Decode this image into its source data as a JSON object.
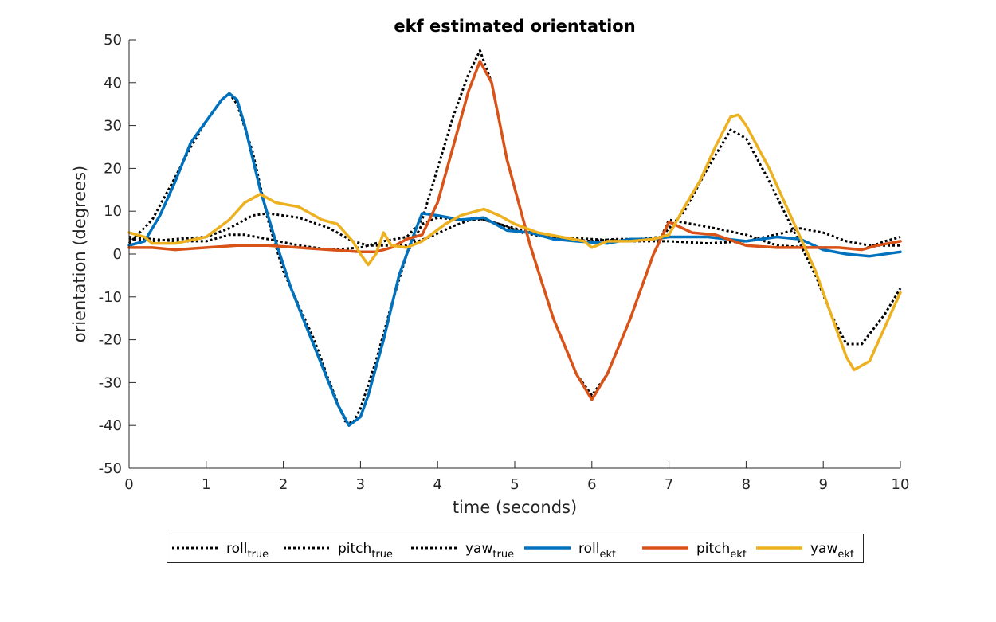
{
  "chart_data": {
    "type": "line",
    "title": "ekf estimated orientation",
    "xlabel": "time (seconds)",
    "ylabel": "orientation (degrees)",
    "xlim": [
      0,
      10
    ],
    "ylim": [
      -50,
      50
    ],
    "xticks": [
      0,
      1,
      2,
      3,
      4,
      5,
      6,
      7,
      8,
      9,
      10
    ],
    "yticks": [
      -50,
      -40,
      -30,
      -20,
      -10,
      0,
      10,
      20,
      30,
      40,
      50
    ],
    "grid": false,
    "legend_placement": "bottom-outside",
    "series": [
      {
        "name": "roll",
        "sub": "true",
        "color": "#000000",
        "style": "dotted",
        "points": [
          [
            0,
            2.5
          ],
          [
            0.3,
            8
          ],
          [
            0.6,
            18
          ],
          [
            0.8,
            25
          ],
          [
            1.0,
            31
          ],
          [
            1.2,
            36
          ],
          [
            1.3,
            37.5
          ],
          [
            1.4,
            35
          ],
          [
            1.6,
            24
          ],
          [
            1.8,
            8
          ],
          [
            2.0,
            -4
          ],
          [
            2.2,
            -12
          ],
          [
            2.4,
            -20
          ],
          [
            2.6,
            -30
          ],
          [
            2.8,
            -39
          ],
          [
            2.9,
            -39.5
          ],
          [
            3.0,
            -36
          ],
          [
            3.2,
            -25
          ],
          [
            3.4,
            -12
          ],
          [
            3.6,
            0
          ],
          [
            3.8,
            7
          ],
          [
            4.0,
            8.5
          ],
          [
            4.3,
            8
          ],
          [
            4.6,
            8
          ],
          [
            5.0,
            6
          ],
          [
            5.5,
            4
          ],
          [
            6.0,
            3.5
          ],
          [
            6.5,
            3
          ],
          [
            7.0,
            3
          ],
          [
            7.5,
            2.5
          ],
          [
            8.0,
            3
          ],
          [
            8.5,
            5
          ],
          [
            8.7,
            6
          ],
          [
            9.0,
            5
          ],
          [
            9.3,
            3
          ],
          [
            9.6,
            2
          ],
          [
            10.0,
            2
          ]
        ]
      },
      {
        "name": "pitch",
        "sub": "true",
        "color": "#000000",
        "style": "dotted",
        "points": [
          [
            0,
            4
          ],
          [
            0.3,
            3.5
          ],
          [
            0.6,
            3
          ],
          [
            1.0,
            3
          ],
          [
            1.3,
            4.5
          ],
          [
            1.5,
            4.5
          ],
          [
            1.8,
            3.5
          ],
          [
            2.2,
            2
          ],
          [
            2.6,
            1
          ],
          [
            3.0,
            1.5
          ],
          [
            3.3,
            3
          ],
          [
            3.6,
            4
          ],
          [
            3.8,
            8
          ],
          [
            4.0,
            20
          ],
          [
            4.2,
            32
          ],
          [
            4.4,
            42
          ],
          [
            4.55,
            47.5
          ],
          [
            4.7,
            40
          ],
          [
            4.9,
            22
          ],
          [
            5.2,
            2
          ],
          [
            5.5,
            -15
          ],
          [
            5.8,
            -28
          ],
          [
            6.0,
            -33
          ],
          [
            6.2,
            -28
          ],
          [
            6.5,
            -15
          ],
          [
            6.8,
            0
          ],
          [
            7.0,
            8
          ],
          [
            7.3,
            7
          ],
          [
            7.6,
            6
          ],
          [
            8.0,
            4.5
          ],
          [
            8.4,
            2
          ],
          [
            8.8,
            1.5
          ],
          [
            9.2,
            1.5
          ],
          [
            9.5,
            1
          ],
          [
            9.8,
            3
          ],
          [
            10.0,
            4
          ]
        ]
      },
      {
        "name": "yaw",
        "sub": "true",
        "color": "#000000",
        "style": "dotted",
        "points": [
          [
            0,
            3.5
          ],
          [
            0.3,
            3
          ],
          [
            0.6,
            3.5
          ],
          [
            1.0,
            4
          ],
          [
            1.3,
            6
          ],
          [
            1.6,
            9
          ],
          [
            1.8,
            9.5
          ],
          [
            2.2,
            8.5
          ],
          [
            2.6,
            6
          ],
          [
            2.9,
            3
          ],
          [
            3.1,
            2
          ],
          [
            3.3,
            2
          ],
          [
            3.6,
            2
          ],
          [
            3.9,
            4
          ],
          [
            4.2,
            6.5
          ],
          [
            4.5,
            8.5
          ],
          [
            4.8,
            7
          ],
          [
            5.1,
            5
          ],
          [
            5.4,
            4
          ],
          [
            5.7,
            3.5
          ],
          [
            6.0,
            3
          ],
          [
            6.3,
            3.5
          ],
          [
            6.6,
            3.5
          ],
          [
            6.9,
            4
          ],
          [
            7.2,
            10
          ],
          [
            7.5,
            20
          ],
          [
            7.8,
            29
          ],
          [
            8.0,
            27
          ],
          [
            8.3,
            17
          ],
          [
            8.6,
            6
          ],
          [
            8.9,
            -5
          ],
          [
            9.1,
            -14
          ],
          [
            9.3,
            -21
          ],
          [
            9.5,
            -21
          ],
          [
            9.8,
            -14
          ],
          [
            10.0,
            -8
          ]
        ]
      },
      {
        "name": "roll",
        "sub": "ekf",
        "color": "#0072BD",
        "style": "solid",
        "points": [
          [
            0,
            2
          ],
          [
            0.2,
            3
          ],
          [
            0.4,
            9
          ],
          [
            0.6,
            17
          ],
          [
            0.8,
            26
          ],
          [
            1.0,
            31
          ],
          [
            1.2,
            36
          ],
          [
            1.3,
            37.5
          ],
          [
            1.4,
            36
          ],
          [
            1.5,
            30
          ],
          [
            1.7,
            15
          ],
          [
            1.9,
            3
          ],
          [
            2.1,
            -8
          ],
          [
            2.3,
            -17
          ],
          [
            2.5,
            -26
          ],
          [
            2.7,
            -35
          ],
          [
            2.85,
            -40
          ],
          [
            3.0,
            -38
          ],
          [
            3.1,
            -33
          ],
          [
            3.3,
            -20
          ],
          [
            3.5,
            -5
          ],
          [
            3.7,
            5
          ],
          [
            3.8,
            9.5
          ],
          [
            4.0,
            9
          ],
          [
            4.3,
            8
          ],
          [
            4.6,
            8.5
          ],
          [
            4.9,
            5.5
          ],
          [
            5.2,
            5
          ],
          [
            5.5,
            3.5
          ],
          [
            5.8,
            3
          ],
          [
            6.2,
            2.5
          ],
          [
            6.5,
            3.5
          ],
          [
            6.8,
            3.5
          ],
          [
            7.0,
            4
          ],
          [
            7.5,
            4
          ],
          [
            8.0,
            3
          ],
          [
            8.4,
            4
          ],
          [
            8.7,
            3.5
          ],
          [
            9.0,
            1
          ],
          [
            9.3,
            0
          ],
          [
            9.6,
            -0.5
          ],
          [
            10.0,
            0.5
          ]
        ]
      },
      {
        "name": "pitch",
        "sub": "ekf",
        "color": "#D95319",
        "style": "solid",
        "points": [
          [
            0,
            1.5
          ],
          [
            0.3,
            1.5
          ],
          [
            0.6,
            1
          ],
          [
            1.0,
            1.5
          ],
          [
            1.4,
            2
          ],
          [
            1.8,
            2
          ],
          [
            2.2,
            1.5
          ],
          [
            2.6,
            1
          ],
          [
            3.0,
            0.5
          ],
          [
            3.2,
            0.5
          ],
          [
            3.4,
            1.5
          ],
          [
            3.6,
            3.5
          ],
          [
            3.8,
            4.5
          ],
          [
            4.0,
            12
          ],
          [
            4.2,
            25
          ],
          [
            4.4,
            38
          ],
          [
            4.55,
            45
          ],
          [
            4.7,
            40
          ],
          [
            4.9,
            22
          ],
          [
            5.2,
            2
          ],
          [
            5.5,
            -15
          ],
          [
            5.8,
            -28
          ],
          [
            6.0,
            -34
          ],
          [
            6.2,
            -28
          ],
          [
            6.5,
            -15
          ],
          [
            6.8,
            0
          ],
          [
            7.0,
            7.5
          ],
          [
            7.3,
            5
          ],
          [
            7.6,
            4.5
          ],
          [
            8.0,
            2
          ],
          [
            8.4,
            1.5
          ],
          [
            8.8,
            1.5
          ],
          [
            9.2,
            1.5
          ],
          [
            9.5,
            1
          ],
          [
            9.7,
            2
          ],
          [
            10.0,
            3
          ]
        ]
      },
      {
        "name": "yaw",
        "sub": "ekf",
        "color": "#EDB120",
        "style": "solid",
        "points": [
          [
            0,
            5
          ],
          [
            0.2,
            4
          ],
          [
            0.3,
            2.5
          ],
          [
            0.6,
            2.5
          ],
          [
            1.0,
            4
          ],
          [
            1.3,
            8
          ],
          [
            1.5,
            12
          ],
          [
            1.7,
            14
          ],
          [
            1.9,
            12
          ],
          [
            2.2,
            11
          ],
          [
            2.5,
            8
          ],
          [
            2.7,
            7
          ],
          [
            2.9,
            3
          ],
          [
            3.0,
            0
          ],
          [
            3.1,
            -2.5
          ],
          [
            3.2,
            0
          ],
          [
            3.3,
            5
          ],
          [
            3.4,
            2
          ],
          [
            3.6,
            1.5
          ],
          [
            3.8,
            3
          ],
          [
            4.1,
            7
          ],
          [
            4.3,
            9
          ],
          [
            4.6,
            10.5
          ],
          [
            4.8,
            9
          ],
          [
            5.0,
            7
          ],
          [
            5.3,
            5
          ],
          [
            5.6,
            4
          ],
          [
            5.9,
            3
          ],
          [
            6.0,
            1.5
          ],
          [
            6.2,
            3
          ],
          [
            6.5,
            3
          ],
          [
            6.8,
            3.5
          ],
          [
            7.0,
            4.5
          ],
          [
            7.2,
            11
          ],
          [
            7.4,
            17
          ],
          [
            7.6,
            25
          ],
          [
            7.8,
            32
          ],
          [
            7.9,
            32.5
          ],
          [
            8.0,
            30
          ],
          [
            8.3,
            20
          ],
          [
            8.6,
            8
          ],
          [
            8.9,
            -4
          ],
          [
            9.1,
            -14
          ],
          [
            9.3,
            -24
          ],
          [
            9.4,
            -27
          ],
          [
            9.6,
            -25
          ],
          [
            9.8,
            -17
          ],
          [
            10.0,
            -9
          ]
        ]
      }
    ]
  }
}
